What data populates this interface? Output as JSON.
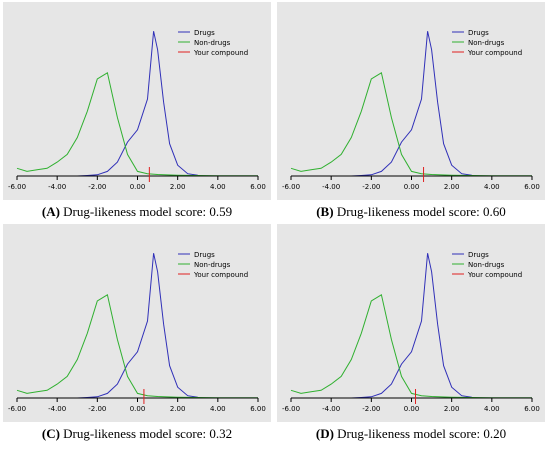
{
  "chart_data": [
    {
      "type": "line",
      "caption_label": "(A)",
      "caption_text": "Drug-likeness model score: 0.59",
      "xlim": [
        -6,
        6
      ],
      "x_ticks": [
        "-6.00",
        "-4.00",
        "-2.00",
        "0.00",
        "2.00",
        "4.00",
        "6.00"
      ],
      "grid": false,
      "legend_position": "top-right",
      "score": 0.59,
      "series": [
        {
          "name": "Drugs",
          "color": "#3030b8",
          "x": [
            -6.0,
            -5.0,
            -4.0,
            -3.0,
            -2.5,
            -2.0,
            -1.5,
            -1.0,
            -0.5,
            0.0,
            0.5,
            0.8,
            1.0,
            1.3,
            1.6,
            2.0,
            2.5,
            3.0
          ],
          "y": [
            0.0,
            0.0,
            0.0,
            0.0,
            0.003,
            0.008,
            0.03,
            0.09,
            0.22,
            0.3,
            0.5,
            0.94,
            0.82,
            0.48,
            0.21,
            0.07,
            0.015,
            0.005
          ]
        },
        {
          "name": "Non-drugs",
          "color": "#30b030",
          "x": [
            -6.0,
            -5.5,
            -5.0,
            -4.5,
            -4.0,
            -3.5,
            -3.0,
            -2.5,
            -2.0,
            -1.5,
            -1.0,
            -0.5,
            0.0,
            0.5,
            1.0,
            2.0,
            3.0,
            4.0,
            5.0,
            6.0
          ],
          "y": [
            0.05,
            0.03,
            0.04,
            0.05,
            0.09,
            0.14,
            0.25,
            0.42,
            0.63,
            0.67,
            0.38,
            0.14,
            0.03,
            0.015,
            0.01,
            0.005,
            0.003,
            0.002,
            0.001,
            0.001
          ]
        }
      ],
      "legend": [
        {
          "label": "Drugs",
          "color": "#3030b8"
        },
        {
          "label": "Non-drugs",
          "color": "#30b030"
        },
        {
          "label": "Your compound",
          "color": "#e02020"
        }
      ]
    },
    {
      "type": "line",
      "caption_label": "(B)",
      "caption_text": "Drug-likeness model score: 0.60",
      "xlim": [
        -6,
        6
      ],
      "x_ticks": [
        "-6.00",
        "-4.00",
        "-2.00",
        "0.00",
        "2.00",
        "4.00",
        "6.00"
      ],
      "grid": false,
      "legend_position": "top-right",
      "score": 0.6,
      "series": [
        {
          "name": "Drugs",
          "color": "#3030b8",
          "x": [
            -6.0,
            -5.0,
            -4.0,
            -3.0,
            -2.5,
            -2.0,
            -1.5,
            -1.0,
            -0.5,
            0.0,
            0.5,
            0.8,
            1.0,
            1.3,
            1.6,
            2.0,
            2.5,
            3.0
          ],
          "y": [
            0.0,
            0.0,
            0.0,
            0.0,
            0.003,
            0.008,
            0.03,
            0.09,
            0.22,
            0.3,
            0.5,
            0.94,
            0.82,
            0.48,
            0.21,
            0.07,
            0.015,
            0.005
          ]
        },
        {
          "name": "Non-drugs",
          "color": "#30b030",
          "x": [
            -6.0,
            -5.5,
            -5.0,
            -4.5,
            -4.0,
            -3.5,
            -3.0,
            -2.5,
            -2.0,
            -1.5,
            -1.0,
            -0.5,
            0.0,
            0.5,
            1.0,
            2.0,
            3.0,
            4.0,
            5.0,
            6.0
          ],
          "y": [
            0.05,
            0.03,
            0.04,
            0.05,
            0.09,
            0.14,
            0.25,
            0.42,
            0.63,
            0.67,
            0.38,
            0.14,
            0.03,
            0.015,
            0.01,
            0.005,
            0.003,
            0.002,
            0.001,
            0.001
          ]
        }
      ],
      "legend": [
        {
          "label": "Drugs",
          "color": "#3030b8"
        },
        {
          "label": "Non-drugs",
          "color": "#30b030"
        },
        {
          "label": "Your compound",
          "color": "#e02020"
        }
      ]
    },
    {
      "type": "line",
      "caption_label": "(C)",
      "caption_text": "Drug-likeness model score: 0.32",
      "xlim": [
        -6,
        6
      ],
      "x_ticks": [
        "-6.00",
        "-4.00",
        "-2.00",
        "0.00",
        "2.00",
        "4.00",
        "6.00"
      ],
      "grid": false,
      "legend_position": "top-right",
      "score": 0.32,
      "series": [
        {
          "name": "Drugs",
          "color": "#3030b8",
          "x": [
            -6.0,
            -5.0,
            -4.0,
            -3.0,
            -2.5,
            -2.0,
            -1.5,
            -1.0,
            -0.5,
            0.0,
            0.5,
            0.8,
            1.0,
            1.3,
            1.6,
            2.0,
            2.5,
            3.0
          ],
          "y": [
            0.0,
            0.0,
            0.0,
            0.0,
            0.003,
            0.008,
            0.03,
            0.09,
            0.22,
            0.3,
            0.5,
            0.94,
            0.82,
            0.48,
            0.21,
            0.07,
            0.015,
            0.005
          ]
        },
        {
          "name": "Non-drugs",
          "color": "#30b030",
          "x": [
            -6.0,
            -5.5,
            -5.0,
            -4.5,
            -4.0,
            -3.5,
            -3.0,
            -2.5,
            -2.0,
            -1.5,
            -1.0,
            -0.5,
            0.0,
            0.5,
            1.0,
            2.0,
            3.0,
            4.0,
            5.0,
            6.0
          ],
          "y": [
            0.05,
            0.03,
            0.04,
            0.05,
            0.09,
            0.14,
            0.25,
            0.42,
            0.63,
            0.67,
            0.38,
            0.14,
            0.03,
            0.015,
            0.01,
            0.005,
            0.003,
            0.002,
            0.001,
            0.001
          ]
        }
      ],
      "legend": [
        {
          "label": "Drugs",
          "color": "#3030b8"
        },
        {
          "label": "Non-drugs",
          "color": "#30b030"
        },
        {
          "label": "Your compound",
          "color": "#e02020"
        }
      ]
    },
    {
      "type": "line",
      "caption_label": "(D)",
      "caption_text": "Drug-likeness model score: 0.20",
      "xlim": [
        -6,
        6
      ],
      "x_ticks": [
        "-6.00",
        "-4.00",
        "-2.00",
        "0.00",
        "2.00",
        "4.00",
        "6.00"
      ],
      "grid": false,
      "legend_position": "top-right",
      "score": 0.2,
      "series": [
        {
          "name": "Drugs",
          "color": "#3030b8",
          "x": [
            -6.0,
            -5.0,
            -4.0,
            -3.0,
            -2.5,
            -2.0,
            -1.5,
            -1.0,
            -0.5,
            0.0,
            0.5,
            0.8,
            1.0,
            1.3,
            1.6,
            2.0,
            2.5,
            3.0
          ],
          "y": [
            0.0,
            0.0,
            0.0,
            0.0,
            0.003,
            0.008,
            0.03,
            0.09,
            0.22,
            0.3,
            0.5,
            0.94,
            0.82,
            0.48,
            0.21,
            0.07,
            0.015,
            0.005
          ]
        },
        {
          "name": "Non-drugs",
          "color": "#30b030",
          "x": [
            -6.0,
            -5.5,
            -5.0,
            -4.5,
            -4.0,
            -3.5,
            -3.0,
            -2.5,
            -2.0,
            -1.5,
            -1.0,
            -0.5,
            0.0,
            0.5,
            1.0,
            2.0,
            3.0,
            4.0,
            5.0,
            6.0
          ],
          "y": [
            0.05,
            0.03,
            0.04,
            0.05,
            0.09,
            0.14,
            0.25,
            0.42,
            0.63,
            0.67,
            0.38,
            0.14,
            0.03,
            0.015,
            0.01,
            0.005,
            0.003,
            0.002,
            0.001,
            0.001
          ]
        }
      ],
      "legend": [
        {
          "label": "Drugs",
          "color": "#3030b8"
        },
        {
          "label": "Non-drugs",
          "color": "#30b030"
        },
        {
          "label": "Your compound",
          "color": "#e02020"
        }
      ]
    }
  ]
}
